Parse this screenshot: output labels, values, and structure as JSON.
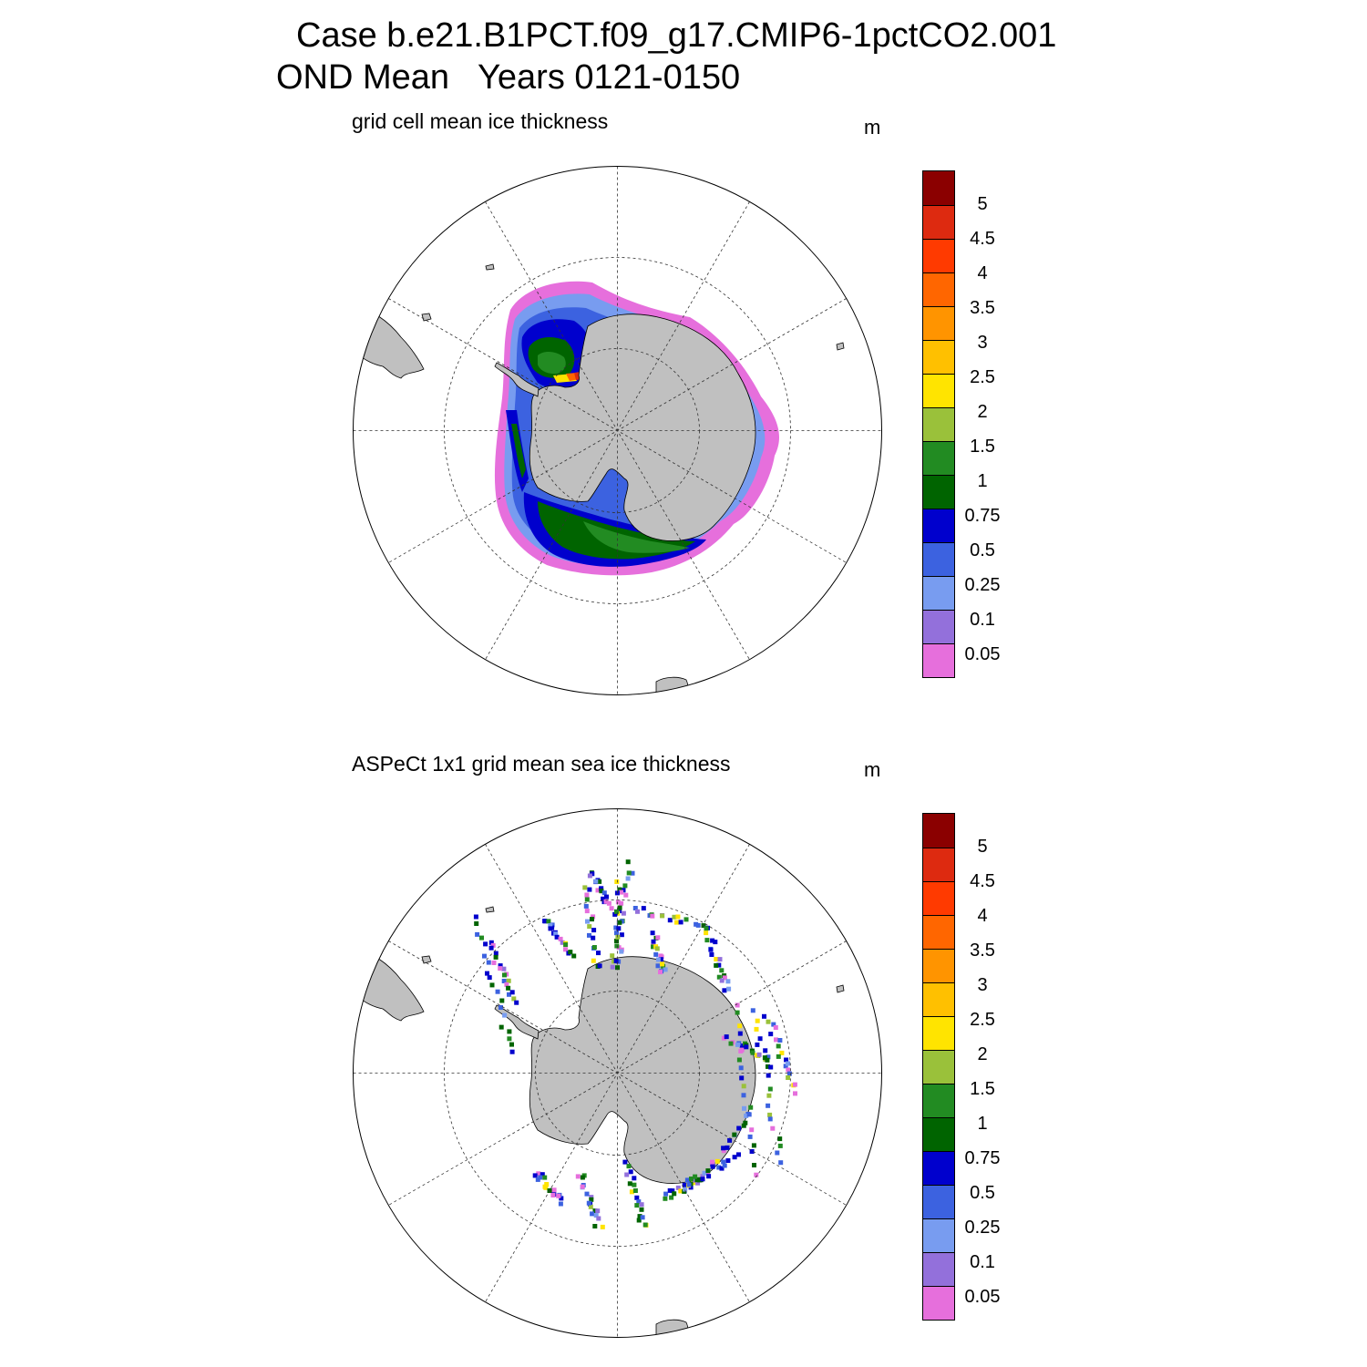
{
  "title": {
    "line1": "Case b.e21.B1PCT.f09_g17.CMIP6-1pctCO2.001",
    "line2": "OND Mean   Years 0121-0150"
  },
  "panels": [
    {
      "title": "grid cell mean ice thickness",
      "units": "m"
    },
    {
      "title": "ASPeCt 1x1 grid mean sea ice thickness",
      "units": "m"
    }
  ],
  "colorbar": {
    "levels": [
      "5",
      "4.5",
      "4",
      "3.5",
      "3",
      "2.5",
      "2",
      "1.5",
      "1",
      "0.75",
      "0.5",
      "0.25",
      "0.1",
      "0.05"
    ],
    "colors": [
      "#8b0000",
      "#dd2a10",
      "#ff3a00",
      "#ff6600",
      "#ff9400",
      "#ffc000",
      "#ffe400",
      "#9ac13a",
      "#228b22",
      "#006400",
      "#0000cd",
      "#3c62e0",
      "#789cf0",
      "#9370db",
      "#e66fdc"
    ]
  },
  "map": {
    "land_color": "#c0c0c0"
  }
}
